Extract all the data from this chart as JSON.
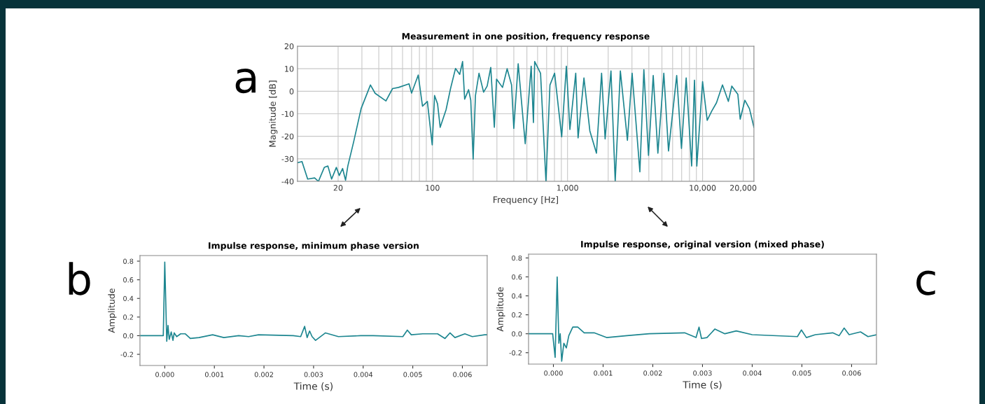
{
  "chart_data": [
    {
      "type": "line",
      "title": "Measurement in one position, frequency response",
      "xlabel": "Frequency [Hz]",
      "ylabel": "Magnitude [dB]",
      "log": "x",
      "grid": true,
      "annotations": [
        "a"
      ],
      "xlim": [
        10,
        24000
      ],
      "ylim": [
        -40,
        20
      ],
      "yticks": [
        -40,
        -30,
        -20,
        -10,
        0,
        10,
        20
      ],
      "xticks": [
        {
          "value": 20,
          "label": "20"
        },
        {
          "value": 30,
          "label": null
        },
        {
          "value": 40,
          "label": null
        },
        {
          "value": 50,
          "label": null
        },
        {
          "value": 60,
          "label": null
        },
        {
          "value": 70,
          "label": null
        },
        {
          "value": 80,
          "label": null
        },
        {
          "value": 90,
          "label": null
        },
        {
          "value": 100,
          "label": "100"
        },
        {
          "value": 200,
          "label": null
        },
        {
          "value": 300,
          "label": null
        },
        {
          "value": 400,
          "label": null
        },
        {
          "value": 500,
          "label": null
        },
        {
          "value": 600,
          "label": null
        },
        {
          "value": 700,
          "label": null
        },
        {
          "value": 800,
          "label": null
        },
        {
          "value": 900,
          "label": null
        },
        {
          "value": 1000,
          "label": "1,000"
        },
        {
          "value": 2000,
          "label": null
        },
        {
          "value": 3000,
          "label": null
        },
        {
          "value": 4000,
          "label": null
        },
        {
          "value": 5000,
          "label": null
        },
        {
          "value": 6000,
          "label": null
        },
        {
          "value": 7000,
          "label": null
        },
        {
          "value": 8000,
          "label": null
        },
        {
          "value": 9000,
          "label": null
        },
        {
          "value": 10000,
          "label": "10,000"
        },
        {
          "value": 20000,
          "label": "20,000"
        }
      ],
      "series": [
        {
          "color": "#1d8690",
          "x": [
            10,
            10.8,
            11.9,
            13.4,
            14.3,
            15.8,
            16.8,
            17.9,
            19.4,
            20.4,
            21.6,
            22.7,
            23.6,
            26.1,
            29.6,
            34.7,
            37.6,
            45.2,
            50.6,
            56,
            67,
            70,
            78.4,
            84.3,
            91.6,
            99.5,
            103.6,
            109,
            114,
            126,
            136,
            148,
            159,
            167,
            173,
            185,
            192,
            200,
            208,
            221,
            239,
            254,
            270,
            287,
            298,
            330,
            357,
            385,
            400,
            431,
            486,
            538,
            559,
            571,
            631,
            692,
            741,
            802,
            905,
            980,
            1041,
            1150,
            1197,
            1323,
            1463,
            1637,
            1787,
            1898,
            2097,
            2254,
            2461,
            2776,
            3007,
            3433,
            3675,
            3976,
            4310,
            4667,
            5164,
            5594,
            6432,
            6975,
            7560,
            8302,
            8710,
            9065,
            10000,
            10820,
            11710,
            12680,
            14040,
            15520,
            16460,
            18250,
            18990,
            20560,
            22230,
            24000
          ],
          "values": [
            -31.7,
            -31.2,
            -39,
            -38.5,
            -40,
            -33.8,
            -33.2,
            -39,
            -33.8,
            -37.4,
            -34.3,
            -39.5,
            -33.2,
            -22.3,
            -7.7,
            2.8,
            -0.9,
            -4.3,
            1.2,
            1.7,
            3.3,
            -0.8,
            7.2,
            -6.6,
            -4.5,
            -23.8,
            -1.9,
            -5.6,
            -16,
            -8.2,
            1.2,
            10.1,
            7.5,
            13.2,
            -3.5,
            0.7,
            -4,
            -30.1,
            -1.9,
            8,
            -0.4,
            2.3,
            10.6,
            -16,
            5.4,
            1.7,
            10,
            2.8,
            -16.5,
            12.2,
            -23.3,
            11.1,
            -13.9,
            13.2,
            8,
            -40,
            2.8,
            8,
            -20.2,
            11.1,
            -17,
            8,
            -20.7,
            5.9,
            -17.6,
            -27.5,
            8,
            -21.2,
            9,
            -40,
            9,
            -21.8,
            8,
            -35.8,
            9.6,
            -28.5,
            7,
            -27.5,
            8,
            -26.5,
            7,
            -25.4,
            5.9,
            -33.2,
            4.9,
            -33.2,
            4.3,
            -12.9,
            -8.7,
            -5.1,
            2.8,
            -4.5,
            2.3,
            -1.4,
            -12.4,
            -4,
            -7.7,
            -16
          ]
        }
      ]
    },
    {
      "type": "line",
      "title": "Impulse response, minimum phase version",
      "xlabel": "Time (s)",
      "ylabel": "Amplitude",
      "annotations": [
        "b"
      ],
      "xlim": [
        -0.0005,
        0.0065
      ],
      "ylim": [
        -0.32,
        0.86
      ],
      "xticks": [
        {
          "value": 0,
          "label": "0.000"
        },
        {
          "value": 0.001,
          "label": "0.001"
        },
        {
          "value": 0.002,
          "label": "0.002"
        },
        {
          "value": 0.003,
          "label": "0.003"
        },
        {
          "value": 0.004,
          "label": "0.004"
        },
        {
          "value": 0.005,
          "label": "0.005"
        },
        {
          "value": 0.006,
          "label": "0.006"
        }
      ],
      "yticks": [
        {
          "value": -0.2,
          "label": "-0.2"
        },
        {
          "value": 0,
          "label": "0.0"
        },
        {
          "value": 0.2,
          "label": "0.2"
        },
        {
          "value": 0.4,
          "label": "0.4"
        },
        {
          "value": 0.6,
          "label": "0.6"
        },
        {
          "value": 0.8,
          "label": "0.8"
        }
      ],
      "series": [
        {
          "color": "#1d8690",
          "x": [
            -0.0005,
            -3e-05,
            0,
            4e-05,
            6.5e-05,
            9e-05,
            0.00013,
            0.000165,
            0.00019,
            0.00024,
            0.00032,
            0.000415,
            0.000515,
            0.00069,
            0.000965,
            0.00119,
            0.00149,
            0.00169,
            0.00189,
            0.00259,
            0.00274,
            0.00282,
            0.00287,
            0.00292,
            0.00297,
            0.00304,
            0.00324,
            0.0035,
            0.00395,
            0.0042,
            0.0048,
            0.00489,
            0.00497,
            0.0052,
            0.0055,
            0.00565,
            0.00575,
            0.00585,
            0.00605,
            0.0062,
            0.00645,
            0.0065
          ],
          "values": [
            0,
            0,
            0.79,
            -0.06,
            0.11,
            -0.04,
            0.04,
            -0.05,
            0.03,
            -0.01,
            0.02,
            0.02,
            -0.03,
            -0.02,
            0.01,
            -0.02,
            0,
            -0.01,
            0.01,
            0,
            -0.01,
            0.1,
            -0.02,
            0.05,
            -0.01,
            -0.05,
            0.03,
            -0.01,
            0,
            0,
            -0.01,
            0.06,
            0.01,
            0.02,
            0.02,
            -0.03,
            0.03,
            -0.02,
            0.02,
            -0.01,
            0.01,
            0.01
          ]
        }
      ]
    },
    {
      "type": "line",
      "title": "Impulse response, original version (mixed phase)",
      "xlabel": "Time (s)",
      "ylabel": "Amplitude",
      "annotations": [
        "c"
      ],
      "xlim": [
        -0.0005,
        0.0065
      ],
      "ylim": [
        -0.32,
        0.84
      ],
      "xticks": [
        {
          "value": 0,
          "label": "0.000"
        },
        {
          "value": 0.001,
          "label": "0.001"
        },
        {
          "value": 0.002,
          "label": "0.002"
        },
        {
          "value": 0.003,
          "label": "0.003"
        },
        {
          "value": 0.004,
          "label": "0.004"
        },
        {
          "value": 0.005,
          "label": "0.005"
        },
        {
          "value": 0.006,
          "label": "0.006"
        }
      ],
      "yticks": [
        {
          "value": -0.2,
          "label": "-0.2"
        },
        {
          "value": 0,
          "label": "0.0"
        },
        {
          "value": 0.2,
          "label": "0.2"
        },
        {
          "value": 0.4,
          "label": "0.4"
        },
        {
          "value": 0.6,
          "label": "0.6"
        },
        {
          "value": 0.8,
          "label": "0.8"
        }
      ],
      "series": [
        {
          "color": "#1d8690",
          "x": [
            -0.0005,
            -1.5e-05,
            3.5e-05,
            7.6e-05,
            0.00011,
            0.000137,
            0.000167,
            0.00021,
            0.00026,
            0.00031,
            0.00039,
            0.00049,
            0.00062,
            0.00082,
            0.00107,
            0.00148,
            0.00193,
            0.00264,
            0.00287,
            0.00293,
            0.00298,
            0.00309,
            0.00325,
            0.00345,
            0.00368,
            0.004,
            0.00491,
            0.00499,
            0.00509,
            0.00527,
            0.00562,
            0.00575,
            0.00585,
            0.00595,
            0.00618,
            0.00633,
            0.0065
          ],
          "values": [
            0,
            0,
            -0.25,
            0.6,
            -0.1,
            0,
            -0.29,
            -0.1,
            -0.15,
            -0.02,
            0.07,
            0.07,
            0.01,
            0.01,
            -0.04,
            -0.02,
            0,
            0.01,
            -0.04,
            0.07,
            -0.05,
            -0.04,
            0.05,
            0,
            0.03,
            -0.01,
            -0.03,
            0.04,
            -0.04,
            -0.01,
            0.01,
            -0.02,
            0.06,
            -0.01,
            0.02,
            -0.03,
            -0.01
          ]
        }
      ]
    }
  ]
}
